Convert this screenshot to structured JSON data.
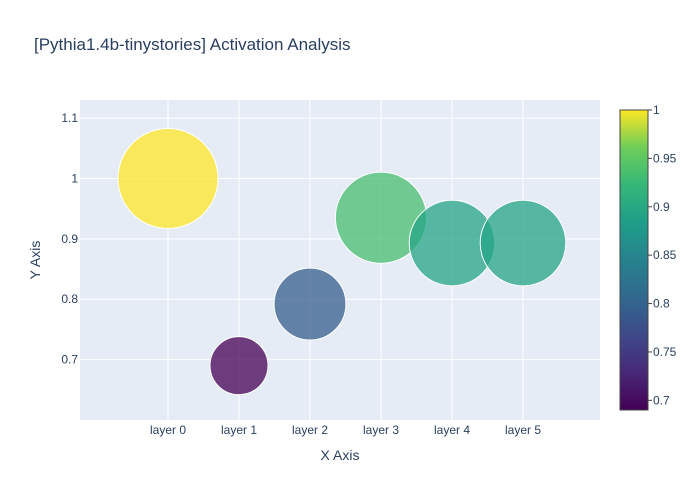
{
  "chart_data": {
    "type": "scatter",
    "title": "[Pythia1.4b-tinystories] Activation Analysis",
    "xlabel": "X Axis",
    "ylabel": "Y Axis",
    "categories": [
      "layer 0",
      "layer 1",
      "layer 2",
      "layer 3",
      "layer 4",
      "layer 5"
    ],
    "values": [
      1.0,
      0.69,
      0.792,
      0.935,
      0.893,
      0.893
    ],
    "ylim": [
      0.6,
      1.13
    ],
    "yticks": [
      0.7,
      0.8,
      0.9,
      1,
      1.1
    ],
    "ytick_labels": [
      "0.7",
      "0.8",
      "0.9",
      "1",
      "1.1"
    ],
    "marker_size_encodes": "value",
    "marker_color_encodes": "value",
    "colorscale": "Viridis",
    "colorbar": {
      "range": [
        0.69,
        1.0
      ],
      "ticks": [
        0.7,
        0.75,
        0.8,
        0.85,
        0.9,
        0.95,
        1
      ],
      "tick_labels": [
        "0.7",
        "0.75",
        "0.8",
        "0.85",
        "0.9",
        "0.95",
        "1"
      ]
    },
    "grid": true,
    "colors": {
      "plot_bg": "#e5ecf6",
      "grid": "#ffffff",
      "text": "#2a3f5f"
    }
  }
}
